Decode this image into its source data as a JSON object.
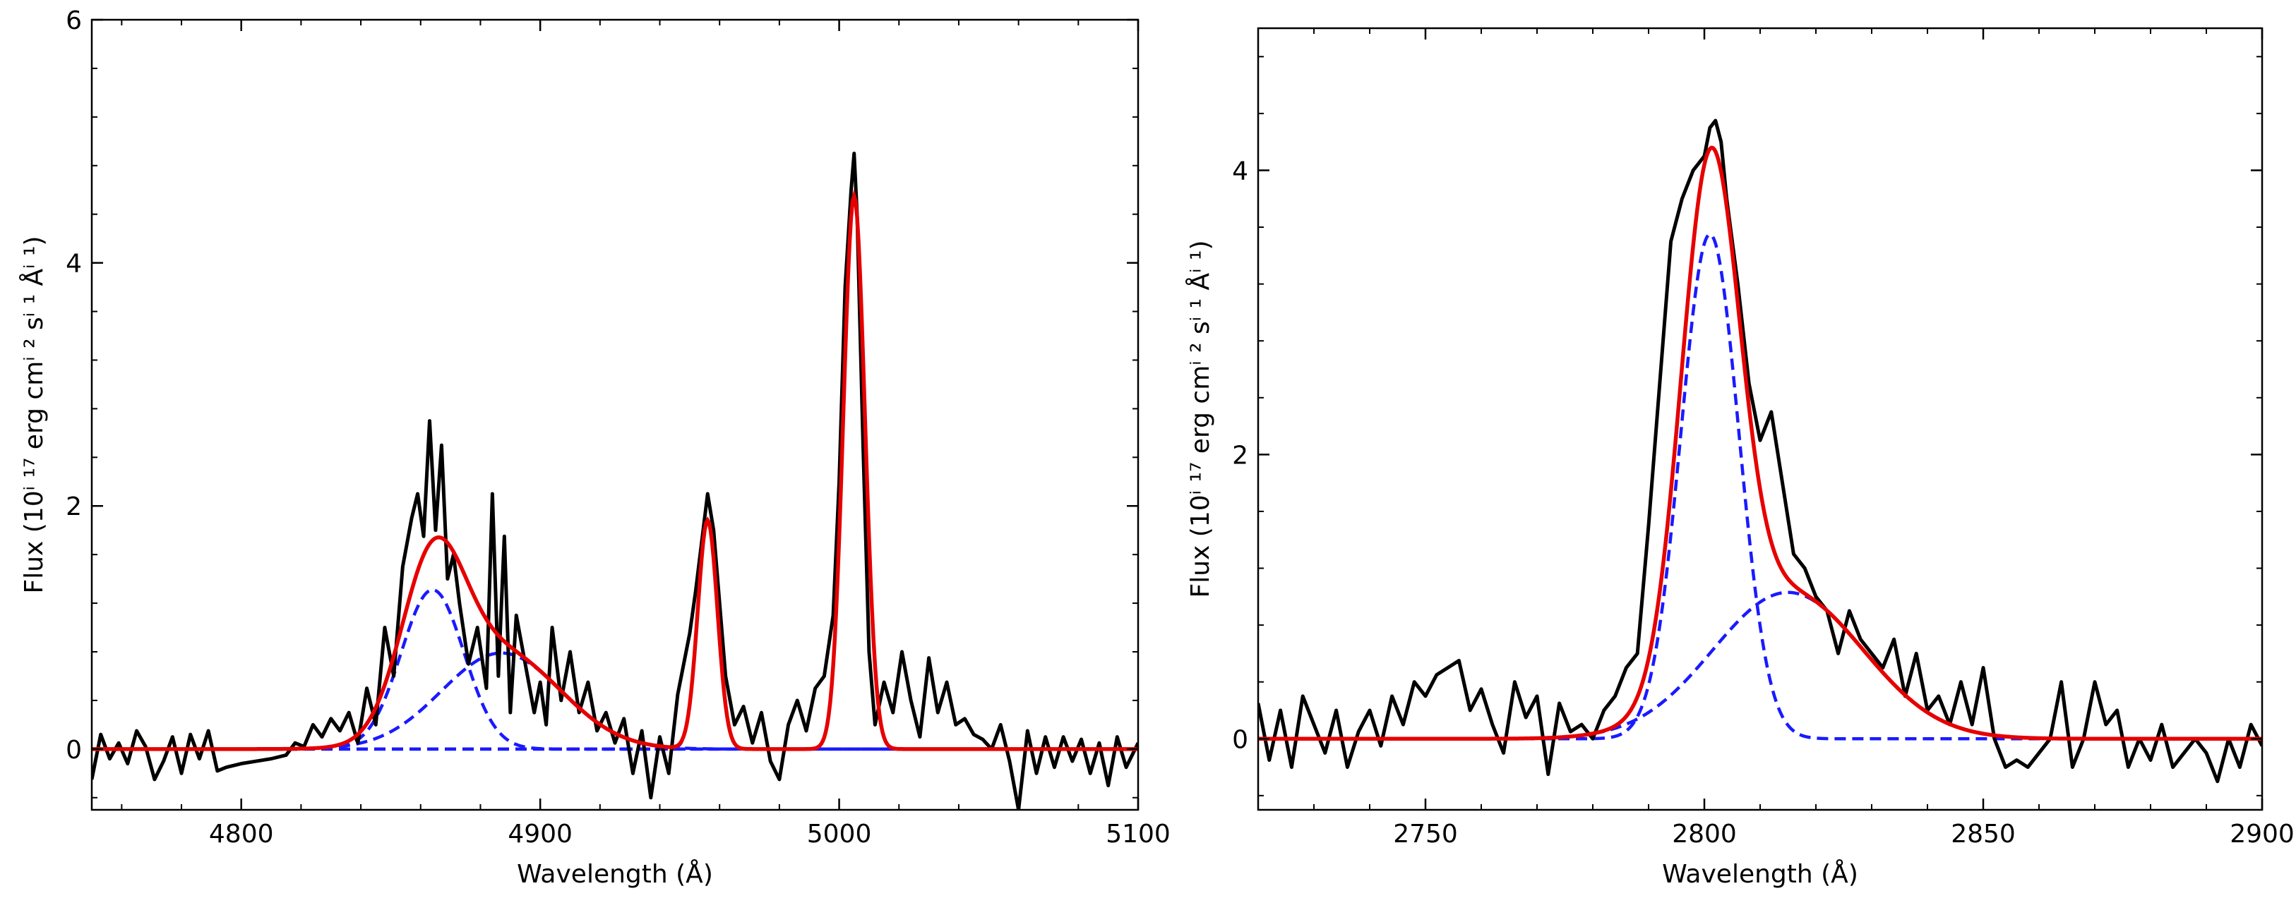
{
  "chart_data": [
    {
      "type": "line",
      "xlabel": "Wavelength (Å)",
      "ylabel": "Flux (10ⁱ ¹⁷ erg cmⁱ ² sⁱ ¹ Åⁱ ¹)",
      "xlim": [
        4750,
        5100
      ],
      "ylim": [
        -0.5,
        6
      ],
      "xticks": [
        4800,
        4900,
        5000,
        5100
      ],
      "yticks": [
        0,
        2,
        4,
        6
      ],
      "components": [
        {
          "type": "gaussian",
          "center": 4864,
          "amplitude": 1.31,
          "sigma": 10.5,
          "style": "blue-dashed"
        },
        {
          "type": "gaussian",
          "center": 4887,
          "amplitude": 0.79,
          "sigma": 20,
          "style": "blue-dashed"
        },
        {
          "type": "gaussian",
          "center": 4956,
          "amplitude": 1.88,
          "sigma": 3.3,
          "style": "blue-dashed"
        },
        {
          "type": "gaussian",
          "center": 5005,
          "amplitude": 4.55,
          "sigma": 3.6,
          "style": "blue-dashed"
        }
      ],
      "series": [
        {
          "color": "#000000",
          "style": "solid",
          "x": [
            4750,
            4753,
            4756,
            4759,
            4762,
            4765,
            4768,
            4771,
            4774,
            4777,
            4780,
            4783,
            4786,
            4789,
            4792,
            4795,
            4800,
            4805,
            4810,
            4815,
            4818,
            4821,
            4824,
            4827,
            4830,
            4833,
            4836,
            4839,
            4842,
            4845,
            4848,
            4851,
            4854,
            4857,
            4859,
            4861,
            4863,
            4865,
            4867,
            4869,
            4871,
            4873,
            4876,
            4879,
            4882,
            4884,
            4886,
            4888,
            4890,
            4892,
            4895,
            4898,
            4900,
            4902,
            4904,
            4907,
            4910,
            4913,
            4916,
            4919,
            4922,
            4925,
            4928,
            4931,
            4934,
            4937,
            4940,
            4943,
            4946,
            4948,
            4950,
            4952,
            4954,
            4956,
            4958,
            4960,
            4962,
            4965,
            4968,
            4971,
            4974,
            4977,
            4980,
            4983,
            4986,
            4989,
            4992,
            4995,
            4998,
            5000,
            5002,
            5004,
            5005,
            5006,
            5008,
            5010,
            5012,
            5015,
            5018,
            5021,
            5024,
            5027,
            5030,
            5033,
            5036,
            5039,
            5042,
            5045,
            5048,
            5051,
            5054,
            5057,
            5060,
            5063,
            5066,
            5069,
            5072,
            5075,
            5078,
            5081,
            5084,
            5087,
            5090,
            5093,
            5096,
            5100
          ],
          "y": [
            -0.25,
            0.12,
            -0.08,
            0.05,
            -0.12,
            0.15,
            0.02,
            -0.25,
            -0.1,
            0.1,
            -0.2,
            0.12,
            -0.08,
            0.15,
            -0.18,
            -0.15,
            -0.12,
            -0.1,
            -0.08,
            -0.05,
            0.05,
            0.02,
            0.2,
            0.1,
            0.25,
            0.15,
            0.3,
            0.05,
            0.5,
            0.2,
            1.0,
            0.6,
            1.5,
            1.9,
            2.1,
            1.75,
            2.7,
            1.8,
            2.5,
            1.4,
            1.6,
            1.2,
            0.7,
            1.0,
            0.5,
            2.1,
            0.6,
            1.75,
            0.3,
            1.1,
            0.7,
            0.3,
            0.55,
            0.2,
            1.0,
            0.4,
            0.8,
            0.3,
            0.55,
            0.15,
            0.3,
            0.05,
            0.25,
            -0.2,
            0.15,
            -0.4,
            0.1,
            -0.2,
            0.45,
            0.7,
            0.95,
            1.3,
            1.7,
            2.1,
            1.8,
            1.2,
            0.6,
            0.2,
            0.35,
            0.05,
            0.3,
            -0.1,
            -0.25,
            0.2,
            0.4,
            0.15,
            0.5,
            0.6,
            1.1,
            2.2,
            3.8,
            4.6,
            4.9,
            4.4,
            2.5,
            0.8,
            0.2,
            0.55,
            0.3,
            0.8,
            0.4,
            0.1,
            0.75,
            0.3,
            0.55,
            0.2,
            0.25,
            0.12,
            0.08,
            0.0,
            0.2,
            -0.1,
            -0.5,
            0.15,
            -0.2,
            0.1,
            -0.15,
            0.1,
            -0.1,
            0.08,
            -0.2,
            0.05,
            -0.3,
            0.1,
            -0.15,
            0.05
          ]
        }
      ]
    },
    {
      "type": "line",
      "xlabel": "Wavelength (Å)",
      "ylabel": "Flux (10ⁱ ¹⁷ erg cmⁱ ² sⁱ ¹ Åⁱ ¹)",
      "xlim": [
        2720,
        2900
      ],
      "ylim": [
        -0.5,
        5
      ],
      "xticks": [
        2750,
        2800,
        2850,
        2900
      ],
      "yticks": [
        0,
        2,
        4
      ],
      "components": [
        {
          "type": "gaussian",
          "center": 2801,
          "amplitude": 3.55,
          "sigma": 5.2,
          "style": "blue-dashed"
        },
        {
          "type": "gaussian",
          "center": 2815,
          "amplitude": 1.03,
          "sigma": 13.5,
          "style": "blue-dashed"
        }
      ],
      "series": [
        {
          "color": "#000000",
          "style": "solid",
          "x": [
            2720,
            2722,
            2724,
            2726,
            2728,
            2730,
            2732,
            2734,
            2736,
            2738,
            2740,
            2742,
            2744,
            2746,
            2748,
            2750,
            2752,
            2754,
            2756,
            2758,
            2760,
            2762,
            2764,
            2766,
            2768,
            2770,
            2772,
            2774,
            2776,
            2778,
            2780,
            2782,
            2784,
            2786,
            2788,
            2790,
            2792,
            2794,
            2796,
            2798,
            2800,
            2801,
            2802,
            2803,
            2804,
            2806,
            2808,
            2810,
            2812,
            2814,
            2816,
            2818,
            2820,
            2822,
            2824,
            2826,
            2828,
            2830,
            2832,
            2834,
            2836,
            2838,
            2840,
            2842,
            2844,
            2846,
            2848,
            2850,
            2852,
            2854,
            2856,
            2858,
            2860,
            2862,
            2864,
            2866,
            2868,
            2870,
            2872,
            2874,
            2876,
            2878,
            2880,
            2882,
            2884,
            2886,
            2888,
            2890,
            2892,
            2894,
            2896,
            2898,
            2900
          ],
          "y": [
            0.25,
            -0.15,
            0.2,
            -0.2,
            0.3,
            0.1,
            -0.1,
            0.2,
            -0.2,
            0.05,
            0.2,
            -0.05,
            0.3,
            0.1,
            0.4,
            0.3,
            0.45,
            0.5,
            0.55,
            0.2,
            0.35,
            0.1,
            -0.1,
            0.4,
            0.15,
            0.3,
            -0.25,
            0.25,
            0.05,
            0.1,
            0.0,
            0.2,
            0.3,
            0.5,
            0.6,
            1.5,
            2.5,
            3.5,
            3.8,
            4.0,
            4.1,
            4.3,
            4.35,
            4.2,
            3.8,
            3.2,
            2.5,
            2.1,
            2.3,
            1.8,
            1.3,
            1.2,
            1.0,
            0.9,
            0.6,
            0.9,
            0.7,
            0.6,
            0.5,
            0.7,
            0.3,
            0.6,
            0.2,
            0.3,
            0.1,
            0.4,
            0.1,
            0.5,
            0.0,
            -0.2,
            -0.15,
            -0.2,
            -0.1,
            0.0,
            0.4,
            -0.2,
            0.0,
            0.4,
            0.1,
            0.2,
            -0.2,
            0.0,
            -0.15,
            0.1,
            -0.2,
            -0.1,
            0.0,
            -0.1,
            -0.3,
            0.0,
            -0.2,
            0.1,
            -0.05
          ]
        }
      ]
    }
  ]
}
